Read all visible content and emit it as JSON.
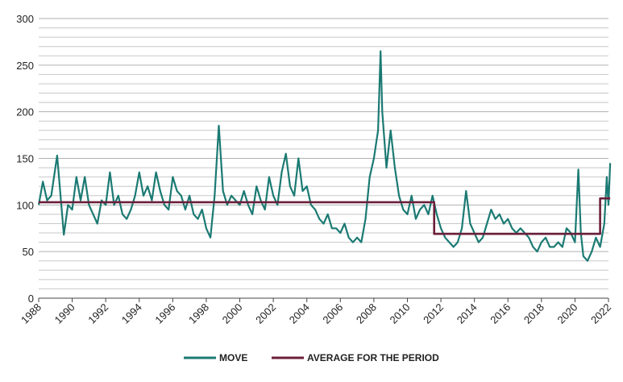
{
  "chart_data": {
    "type": "line",
    "xlim": [
      1988,
      2022
    ],
    "xticks": [
      1988,
      1990,
      1992,
      1994,
      1996,
      1998,
      2000,
      2002,
      2004,
      2006,
      2008,
      2010,
      2012,
      2014,
      2016,
      2018,
      2020,
      2022
    ],
    "ylim": [
      0,
      300
    ],
    "yticks": [
      0,
      50,
      100,
      150,
      200,
      250,
      300
    ],
    "minor_yticks": [
      10,
      20,
      30,
      40,
      60,
      70,
      80,
      90,
      110,
      120,
      130,
      140,
      160,
      170,
      180,
      190,
      210,
      220,
      230,
      240,
      260,
      270,
      280,
      290
    ],
    "grid": true,
    "legend": "bottom",
    "series": [
      {
        "name": "MOVE",
        "color": "#1b7a73",
        "x": [
          1988,
          1988.25,
          1988.5,
          1988.75,
          1989.1,
          1989.5,
          1989.75,
          1990,
          1990.25,
          1990.5,
          1990.75,
          1991,
          1991.25,
          1991.5,
          1991.75,
          1992,
          1992.25,
          1992.5,
          1992.75,
          1993,
          1993.25,
          1993.5,
          1993.75,
          1994,
          1994.25,
          1994.5,
          1994.75,
          1995,
          1995.25,
          1995.5,
          1995.75,
          1996,
          1996.25,
          1996.5,
          1996.75,
          1997,
          1997.25,
          1997.5,
          1997.75,
          1998,
          1998.25,
          1998.5,
          1998.75,
          1999,
          1999.25,
          1999.5,
          1999.75,
          2000,
          2000.25,
          2000.5,
          2000.75,
          2001,
          2001.25,
          2001.5,
          2001.75,
          2002,
          2002.25,
          2002.5,
          2002.75,
          2003,
          2003.25,
          2003.5,
          2003.75,
          2004,
          2004.25,
          2004.5,
          2004.75,
          2005,
          2005.25,
          2005.5,
          2005.75,
          2006,
          2006.25,
          2006.5,
          2006.75,
          2007,
          2007.25,
          2007.5,
          2007.75,
          2008,
          2008.25,
          2008.4,
          2008.5,
          2008.75,
          2009,
          2009.25,
          2009.5,
          2009.75,
          2010,
          2010.25,
          2010.5,
          2010.75,
          2011,
          2011.25,
          2011.5,
          2011.75,
          2012,
          2012.25,
          2012.5,
          2012.75,
          2013,
          2013.25,
          2013.5,
          2013.75,
          2014,
          2014.25,
          2014.5,
          2014.75,
          2015,
          2015.25,
          2015.5,
          2015.75,
          2016,
          2016.25,
          2016.5,
          2016.75,
          2017,
          2017.25,
          2017.5,
          2017.75,
          2018,
          2018.25,
          2018.5,
          2018.75,
          2019,
          2019.25,
          2019.5,
          2019.75,
          2020,
          2020.2,
          2020.35,
          2020.5,
          2020.75,
          2021,
          2021.25,
          2021.5,
          2021.75,
          2021.9,
          2022,
          2022.1
        ],
        "values": [
          100,
          125,
          105,
          110,
          153,
          68,
          100,
          95,
          130,
          105,
          130,
          100,
          90,
          80,
          105,
          100,
          135,
          100,
          110,
          90,
          85,
          95,
          110,
          135,
          110,
          120,
          105,
          135,
          115,
          100,
          95,
          130,
          115,
          110,
          95,
          110,
          90,
          85,
          95,
          75,
          65,
          110,
          185,
          115,
          100,
          110,
          105,
          100,
          115,
          100,
          90,
          120,
          105,
          95,
          130,
          110,
          100,
          135,
          155,
          120,
          110,
          150,
          115,
          120,
          100,
          95,
          85,
          80,
          90,
          75,
          75,
          70,
          80,
          65,
          60,
          65,
          60,
          85,
          130,
          150,
          180,
          265,
          200,
          140,
          180,
          140,
          110,
          95,
          90,
          110,
          85,
          95,
          100,
          90,
          110,
          90,
          75,
          65,
          60,
          55,
          60,
          75,
          115,
          80,
          70,
          60,
          65,
          80,
          95,
          85,
          90,
          80,
          85,
          75,
          70,
          75,
          70,
          65,
          55,
          50,
          60,
          65,
          55,
          55,
          60,
          55,
          75,
          70,
          60,
          138,
          70,
          45,
          40,
          50,
          65,
          55,
          80,
          130,
          100,
          145
        ]
      },
      {
        "name": "AVERAGE FOR THE PERIOD",
        "color": "#6b1f3a",
        "x": [
          1988,
          2011.6,
          2011.6,
          2021.5,
          2021.5,
          2022.1
        ],
        "values": [
          103,
          103,
          69,
          69,
          107,
          107
        ]
      }
    ]
  }
}
